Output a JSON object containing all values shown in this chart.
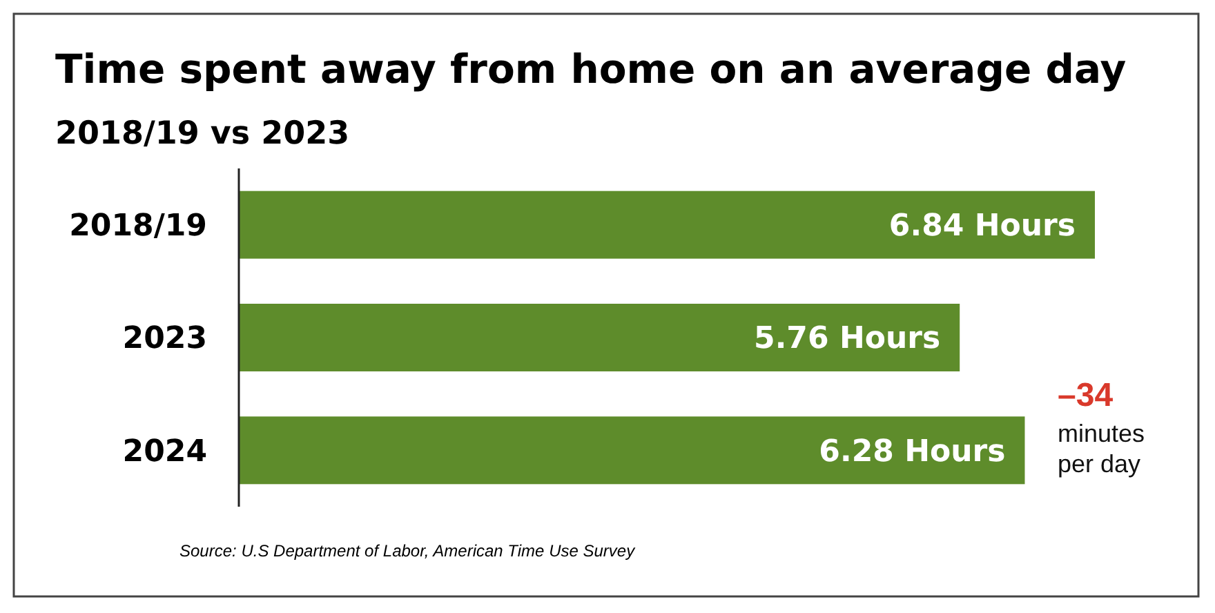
{
  "chart_data": {
    "type": "bar",
    "orientation": "horizontal",
    "title": "Time spent away from home on an average day",
    "subtitle": "2018/19 vs 2023",
    "categories": [
      "2018/19",
      "2023",
      "2024"
    ],
    "values": [
      6.84,
      5.76,
      6.28
    ],
    "color": "#5e8c2b",
    "value_labels": [
      "6.84 Hours",
      "5.76 Hours",
      "6.28 Hours"
    ],
    "annotations": [
      "–34 minutes per day",
      "Source: U.S Department of Labor, American Time Use Survey"
    ]
  }
}
